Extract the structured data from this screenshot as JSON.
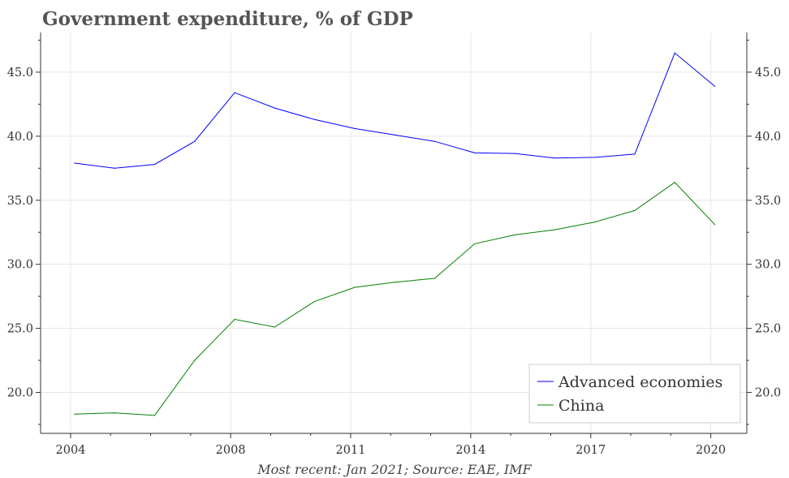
{
  "chart_data": {
    "type": "line",
    "title": "Government expenditure, % of GDP",
    "source": "Most recent: Jan 2021; Source: EAE, IMF",
    "xlabel": "",
    "ylabel": "",
    "x": [
      2004.0,
      2005.0,
      2006.0,
      2007.0,
      2008.0,
      2009.0,
      2010.0,
      2011.0,
      2012.0,
      2013.0,
      2014.0,
      2015.0,
      2016.0,
      2017.0,
      2018.0,
      2019.0,
      2020.0
    ],
    "x_tick_values": [
      2004,
      2008,
      2011,
      2014,
      2017,
      2020
    ],
    "x_tick_labels": [
      "2004",
      "2008",
      "2011",
      "2014",
      "2017",
      "2020"
    ],
    "xlim": [
      2003.25,
      2020.9
    ],
    "y_tick_values": [
      20,
      25,
      30,
      35,
      40,
      45
    ],
    "y_tick_labels": [
      "20.0",
      "25.0",
      "30.0",
      "35.0",
      "40.0",
      "45.0"
    ],
    "ylim": [
      16.8,
      48.1
    ],
    "grid": true,
    "legend_position": "bottom-right",
    "series": [
      {
        "name": "Advanced economies",
        "color": "#0000ff",
        "x": [
          2004.1,
          2005.1,
          2006.1,
          2007.1,
          2008.1,
          2009.1,
          2010.1,
          2011.1,
          2012.1,
          2013.1,
          2014.1,
          2015.1,
          2016.1,
          2017.1,
          2018.1,
          2019.1,
          2020.1
        ],
        "values": [
          37.9,
          37.5,
          37.8,
          39.6,
          43.4,
          42.2,
          41.3,
          40.6,
          40.1,
          39.6,
          38.7,
          38.65,
          38.3,
          38.35,
          38.6,
          46.5,
          43.9
        ]
      },
      {
        "name": "China",
        "color": "#008000",
        "x": [
          2004.1,
          2005.1,
          2006.1,
          2007.1,
          2008.1,
          2009.1,
          2010.1,
          2011.1,
          2012.1,
          2013.1,
          2014.1,
          2015.1,
          2016.1,
          2017.1,
          2018.1,
          2019.1,
          2020.1
        ],
        "values": [
          18.3,
          18.4,
          18.2,
          22.5,
          25.7,
          25.1,
          27.1,
          28.2,
          28.6,
          28.9,
          31.6,
          32.3,
          32.7,
          33.3,
          34.2,
          36.4,
          33.1
        ]
      }
    ]
  }
}
